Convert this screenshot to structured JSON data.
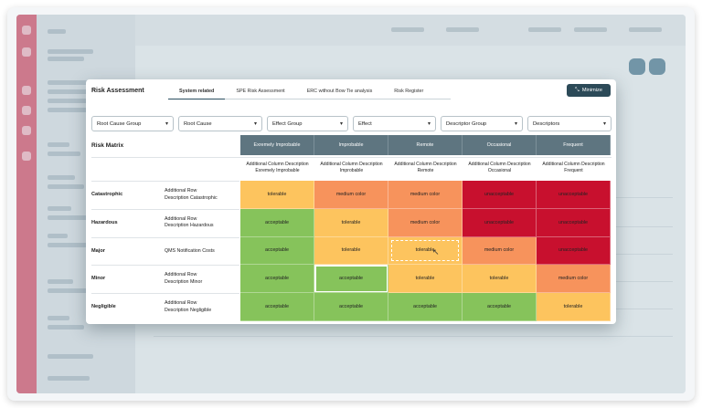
{
  "modal": {
    "title": "Risk Assessment",
    "tabs": [
      "System related",
      "SPE Risk Assessment",
      "ERC without Bow Tie analysis",
      "Risk Register"
    ],
    "active_tab": "System related",
    "minimize_label": "Minimize",
    "minimize_icon": "compress-icon"
  },
  "filters": [
    "Root Cause Group",
    "Root Cause",
    "Effect Group",
    "Effect",
    "Descriptor Group",
    "Descriptors"
  ],
  "matrix": {
    "label": "Risk Matrix",
    "columns": [
      {
        "name": "Exremely Improbable",
        "desc1": "Additional Column Description",
        "desc2": "Exremely Improbable"
      },
      {
        "name": "Improbable",
        "desc1": "Additional Column Description",
        "desc2": "Improbable"
      },
      {
        "name": "Remote",
        "desc1": "Additional Column Description",
        "desc2": "Remote"
      },
      {
        "name": "Occasional",
        "desc1": "Additional Column Description",
        "desc2": "Occasional"
      },
      {
        "name": "Frequent",
        "desc1": "Additional Column Description",
        "desc2": "Frequent"
      }
    ],
    "rows": [
      {
        "name": "Catastrophic",
        "desc1": "Additional Row",
        "desc2": "Description Catastrophic",
        "cells": [
          "tolerable",
          "medium color",
          "medium color",
          "unacceptable",
          "unacceptable"
        ]
      },
      {
        "name": "Hazardous",
        "desc1": "Additional Row",
        "desc2": "Description Hazardous",
        "cells": [
          "acceptable",
          "tolerable",
          "medium color",
          "unacceptable",
          "unacceptable"
        ]
      },
      {
        "name": "Major",
        "desc1": "QMS Notification Costs",
        "desc2": "",
        "cells": [
          "acceptable",
          "tolerable",
          "tolerable",
          "medium color",
          "unacceptable"
        ]
      },
      {
        "name": "Minor",
        "desc1": "Additional Row",
        "desc2": "Description Minor",
        "cells": [
          "acceptable",
          "acceptable",
          "tolerable",
          "tolerable",
          "medium color"
        ]
      },
      {
        "name": "Negligible",
        "desc1": "Additional Row",
        "desc2": "Description Negligible",
        "cells": [
          "acceptable",
          "acceptable",
          "acceptable",
          "acceptable",
          "tolerable"
        ]
      }
    ],
    "colors": {
      "acceptable": "#86c35b",
      "tolerable": "#fdc45e",
      "medium color": "#f7935c",
      "unacceptable": "#c8102e"
    }
  }
}
